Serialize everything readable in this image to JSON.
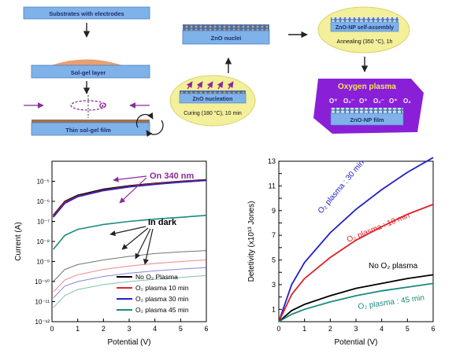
{
  "process": {
    "step1": "Substrates with electrodes",
    "step2": "Sol-gel layer",
    "step3": "Thin sol-gel film",
    "omega": "ω",
    "nucleation": "ZnO nucleation",
    "curing": "Curing (180 °C), 10 min",
    "nuclei": "ZnO nuclei",
    "selfassembly": "ZnO-NP self-assembly",
    "annealing": "Annealing (350 °C), 1h",
    "plasma_title": "Oxygen plasma",
    "plasma_ions": [
      "O⁺",
      "O₂⁻",
      "O⁺",
      "O₂⁻",
      "O⁺",
      "O₂"
    ],
    "np_film": "ZnO-NP film"
  },
  "colors": {
    "no_plasma": "#000000",
    "plasma_10": "#e0202a",
    "plasma_30": "#2020c8",
    "plasma_45": "#1a8a7e",
    "annot_purple": "#8a2a9a",
    "substrate_blue": "#7fb2e8",
    "callout_yellow": "#f3ef9a",
    "plasma_purple": "#8a1fd8"
  },
  "chart_data": [
    {
      "type": "line",
      "ylabel": "Current (A)",
      "xlabel": "Potential (V)",
      "xlim": [
        0,
        6
      ],
      "xticks": [
        "0",
        "1",
        "2",
        "3",
        "4",
        "5",
        "6"
      ],
      "yscale": "log",
      "ylim": [
        1e-12,
        0.0001
      ],
      "yticks": [
        "10⁻¹²",
        "10⁻¹¹",
        "10⁻¹⁰",
        "10⁻⁹",
        "10⁻⁸",
        "10⁻⁷",
        "10⁻⁶",
        "10⁻⁵"
      ],
      "annotations": [
        "On 340 nm",
        "In dark"
      ],
      "legend": [
        "No O₂ Plasma",
        "O₂ plasma 10 min",
        "O₂ plasma 30 min",
        "O₂ plasma 45 min"
      ],
      "legend_position": "bottom-right",
      "series_light": [
        {
          "x": [
            0.05,
            0.5,
            1,
            2,
            3,
            4,
            5,
            6
          ],
          "y": [
            2e-07,
            1e-06,
            2e-06,
            4e-06,
            6e-06,
            8e-06,
            1e-05,
            1.2e-05
          ]
        },
        {
          "x": [
            0.05,
            0.5,
            1,
            2,
            3,
            4,
            5,
            6
          ],
          "y": [
            1.8e-07,
            9e-07,
            1.8e-06,
            3.6e-06,
            5.5e-06,
            7.5e-06,
            9.5e-06,
            1.15e-05
          ]
        },
        {
          "x": [
            0.05,
            0.5,
            1,
            2,
            3,
            4,
            5,
            6
          ],
          "y": [
            1.6e-07,
            8e-07,
            1.7e-06,
            3.4e-06,
            5.2e-06,
            7e-06,
            9e-06,
            1.1e-05
          ]
        },
        {
          "x": [
            0.05,
            0.5,
            1,
            2,
            3,
            4,
            5,
            6
          ],
          "y": [
            4e-09,
            2e-08,
            4e-08,
            7e-08,
            1e-07,
            1.3e-07,
            1.6e-07,
            2e-07
          ]
        }
      ],
      "series_dark": [
        {
          "x": [
            0.05,
            0.5,
            1,
            2,
            3,
            4,
            5,
            6
          ],
          "y": [
            1e-10,
            4e-10,
            7e-10,
            1.2e-09,
            1.8e-09,
            2.5e-09,
            3e-09,
            3.5e-09
          ]
        },
        {
          "x": [
            0.05,
            0.5,
            1,
            2,
            3,
            4,
            5,
            6
          ],
          "y": [
            3e-11,
            1.2e-10,
            2.2e-10,
            4e-10,
            6e-10,
            8e-10,
            1e-09,
            1.2e-09
          ]
        },
        {
          "x": [
            0.05,
            0.5,
            1,
            2,
            3,
            4,
            5,
            6
          ],
          "y": [
            1.5e-11,
            6e-11,
            1e-10,
            1.8e-10,
            2.6e-10,
            3.4e-10,
            4.2e-10,
            5e-10
          ]
        },
        {
          "x": [
            0.05,
            0.5,
            1,
            2,
            3,
            4,
            5,
            6
          ],
          "y": [
            5e-12,
            2e-11,
            4e-11,
            7e-11,
            1e-10,
            1.3e-10,
            1.6e-10,
            2e-10
          ]
        }
      ]
    },
    {
      "type": "line",
      "ylabel": "Detetivity (x10¹³ Jones)",
      "xlabel": "Potential (V)",
      "xlim": [
        0,
        6
      ],
      "ylim": [
        0,
        13
      ],
      "xticks": [
        "0",
        "1",
        "2",
        "3",
        "4",
        "5",
        "6"
      ],
      "yticks": [
        "0",
        "1",
        "2",
        "3",
        "4",
        "5",
        "6",
        "7",
        "8",
        "9",
        "10",
        "11",
        "12",
        "13"
      ],
      "series": [
        {
          "name": "O₂ plasma : 30 min",
          "x": [
            0,
            0.5,
            1,
            2,
            3,
            4,
            5,
            6
          ],
          "y": [
            0,
            3,
            4.8,
            7.2,
            9.1,
            10.7,
            12.1,
            13.3
          ]
        },
        {
          "name": "O₂ plasma : 10 min",
          "x": [
            0,
            0.5,
            1,
            2,
            3,
            4,
            5,
            6
          ],
          "y": [
            0,
            2.2,
            3.5,
            5.2,
            6.6,
            7.7,
            8.7,
            9.5
          ]
        },
        {
          "name": "No O₂ plasma",
          "x": [
            0,
            0.5,
            1,
            2,
            3,
            4,
            5,
            6
          ],
          "y": [
            0,
            0.9,
            1.4,
            2.1,
            2.7,
            3.1,
            3.5,
            3.8
          ]
        },
        {
          "name": "O₂ plasma : 45 min",
          "x": [
            0,
            0.5,
            1,
            2,
            3,
            4,
            5,
            6
          ],
          "y": [
            0,
            0.6,
            1,
            1.6,
            2.1,
            2.5,
            2.8,
            3.1
          ]
        }
      ]
    }
  ]
}
